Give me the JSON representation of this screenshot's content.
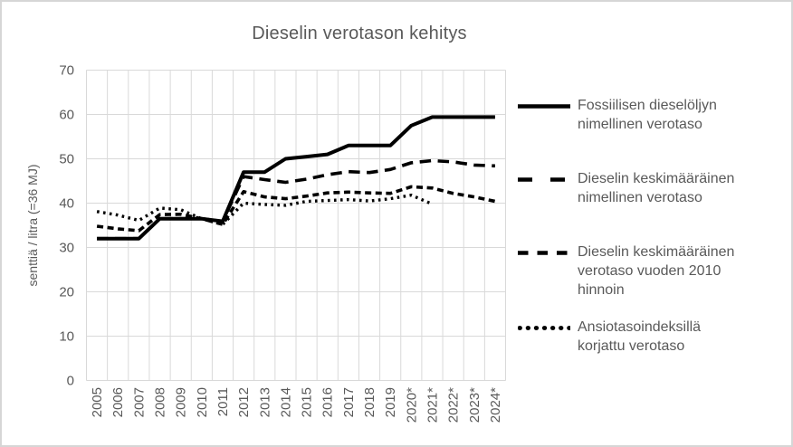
{
  "title": "Dieselin verotason kehitys",
  "colors": {
    "line": "#000000",
    "grid": "#d9d9d9",
    "text": "#595959",
    "frame_border": "#d6d6d6",
    "background": "#ffffff"
  },
  "chart_data": {
    "type": "line",
    "title": "Dieselin verotason kehitys",
    "xlabel": "",
    "ylabel": "senttiä / litra (=36 MJ)",
    "ylim": [
      0,
      70
    ],
    "y_tick_step": 10,
    "y_ticks": [
      0,
      10,
      20,
      30,
      40,
      50,
      60,
      70
    ],
    "grid": true,
    "legend_position": "right",
    "line_color": "#000000",
    "categories": [
      "2005",
      "2006",
      "2007",
      "2008",
      "2009",
      "2010",
      "2011",
      "2012",
      "2013",
      "2014",
      "2015",
      "2016",
      "2017",
      "2018",
      "2019",
      "2020*",
      "2021*",
      "2022*",
      "2023*",
      "2024*"
    ],
    "series": [
      {
        "name": "Fossiilisen dieselöljyn nimellinen verotaso",
        "style": "solid",
        "values": [
          32,
          32,
          32,
          36.5,
          36.5,
          36.5,
          35.9,
          47,
          47,
          50,
          50.5,
          51,
          53,
          53,
          53,
          57.5,
          59.4,
          59.4,
          59.4,
          59.4
        ]
      },
      {
        "name": "Dieselin keskimääräinen nimellinen verotaso",
        "style": "long-dash",
        "values": [
          32,
          32,
          32,
          36.5,
          36.5,
          36.5,
          35.9,
          46,
          45.3,
          44.7,
          45.4,
          46.4,
          47.1,
          46.9,
          47.6,
          49.1,
          49.6,
          49.3,
          48.6,
          48.4
        ]
      },
      {
        "name": "Dieselin keskimääräinen verotaso vuoden 2010 hinnoin",
        "style": "short-dash",
        "values": [
          34.8,
          34.2,
          33.8,
          37.4,
          37.5,
          36.5,
          35.2,
          42.6,
          41.4,
          41.0,
          41.6,
          42.3,
          42.5,
          42.3,
          42.2,
          43.7,
          43.4,
          42.2,
          41.4,
          40.4
        ]
      },
      {
        "name": "Ansiotasoindeksillä korjattu verotaso",
        "style": "dotted",
        "values": [
          38.1,
          37.3,
          36.1,
          38.9,
          38.5,
          36.5,
          35.2,
          40.0,
          39.7,
          39.5,
          40.4,
          40.6,
          40.8,
          40.5,
          41.0,
          41.8,
          39.8,
          null,
          null,
          null
        ]
      }
    ]
  }
}
